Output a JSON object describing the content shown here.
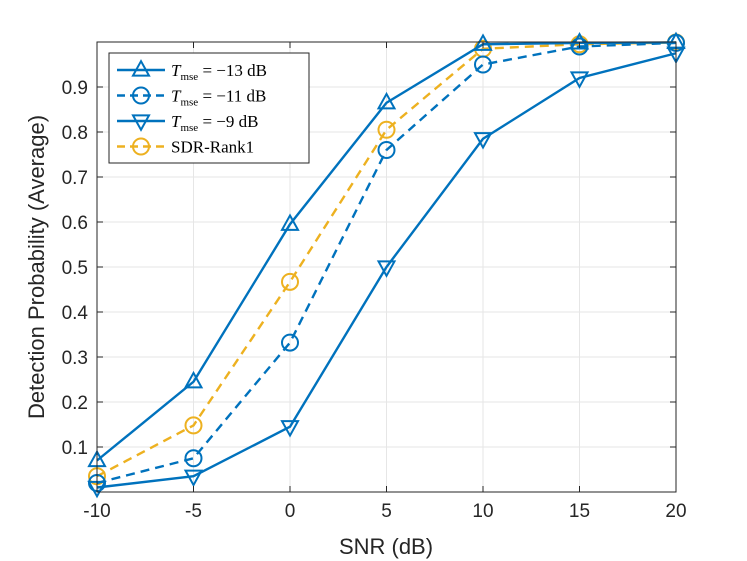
{
  "chart_data": {
    "type": "line",
    "title": "",
    "xlabel": "SNR (dB)",
    "ylabel": "Detection Probability (Average)",
    "x": [
      -10,
      -5,
      0,
      5,
      10,
      15,
      20
    ],
    "xlim": [
      -10,
      20
    ],
    "ylim": [
      0,
      1
    ],
    "xticks": [
      -10,
      -5,
      0,
      5,
      10,
      15,
      20
    ],
    "xtick_labels": [
      "-10",
      "-5",
      "0",
      "5",
      "10",
      "15",
      "20"
    ],
    "yticks": [
      0.1,
      0.2,
      0.3,
      0.4,
      0.5,
      0.6,
      0.7,
      0.8,
      0.9
    ],
    "ytick_labels": [
      "0.1",
      "0.2",
      "0.3",
      "0.4",
      "0.5",
      "0.6",
      "0.7",
      "0.8",
      "0.9"
    ],
    "grid": true,
    "legend_position": "top-left",
    "series": [
      {
        "name": "T_mse = −13 dB",
        "legend_symbol": "T",
        "legend_sub": "mse",
        "legend_rest": " = −13 dB",
        "color": "#0072BD",
        "line_style": "solid",
        "marker": "triangle-up",
        "values": [
          0.07,
          0.245,
          0.595,
          0.865,
          0.995,
          0.998,
          0.999
        ]
      },
      {
        "name": "T_mse = −11 dB",
        "legend_symbol": "T",
        "legend_sub": "mse",
        "legend_rest": " = −11 dB",
        "color": "#0072BD",
        "line_style": "dashed",
        "marker": "circle",
        "values": [
          0.02,
          0.075,
          0.332,
          0.76,
          0.95,
          0.99,
          0.998
        ]
      },
      {
        "name": "T_mse = −9 dB",
        "legend_symbol": "T",
        "legend_sub": "mse",
        "legend_rest": " = −9 dB",
        "color": "#0072BD",
        "line_style": "solid",
        "marker": "triangle-down",
        "values": [
          0.01,
          0.035,
          0.145,
          0.5,
          0.785,
          0.92,
          0.975
        ]
      },
      {
        "name": "SDR-Rank1",
        "legend_symbol": "",
        "legend_sub": "",
        "legend_rest": "SDR-Rank1",
        "color": "#EDB120",
        "line_style": "dashed",
        "marker": "circle",
        "values": [
          0.035,
          0.148,
          0.467,
          0.805,
          0.985,
          0.995,
          0.999
        ]
      }
    ]
  }
}
